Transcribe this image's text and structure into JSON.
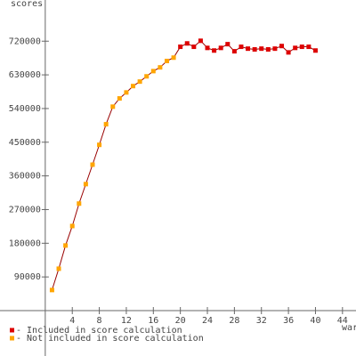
{
  "chart_data": {
    "type": "line",
    "y_label": "scores",
    "x_label": "war",
    "xlim": [
      -6.7,
      46
    ],
    "ylim": [
      0,
      830000
    ],
    "xticks": [
      4,
      8,
      12,
      16,
      20,
      24,
      28,
      32,
      36,
      40,
      44
    ],
    "yticks": [
      90000,
      180000,
      270000,
      360000,
      450000,
      540000,
      630000,
      720000
    ],
    "line_color": "#990000",
    "series": [
      {
        "name": "- Included in score calculation",
        "color": "#dd0000",
        "x": [
          20,
          21,
          22,
          23,
          24,
          25,
          26,
          27,
          28,
          29,
          30,
          31,
          32,
          33,
          34,
          35,
          36,
          37,
          38,
          39,
          40
        ],
        "values": [
          705000,
          714000,
          705000,
          721000,
          702000,
          695000,
          702000,
          712000,
          693000,
          705000,
          700000,
          698000,
          700000,
          698000,
          700000,
          707000,
          690000,
          702000,
          705000,
          705000,
          695000
        ]
      },
      {
        "name": "- Not included in score calculation",
        "color": "#ffa500",
        "x": [
          1,
          2,
          3,
          4,
          5,
          6,
          7,
          8,
          9,
          10,
          11,
          12,
          13,
          14,
          15,
          16,
          17,
          18,
          19
        ],
        "values": [
          55000,
          112000,
          174000,
          226000,
          286000,
          338000,
          390000,
          443000,
          498000,
          545000,
          567000,
          583000,
          600000,
          612000,
          626000,
          640000,
          650000,
          667000,
          676000
        ]
      }
    ]
  }
}
